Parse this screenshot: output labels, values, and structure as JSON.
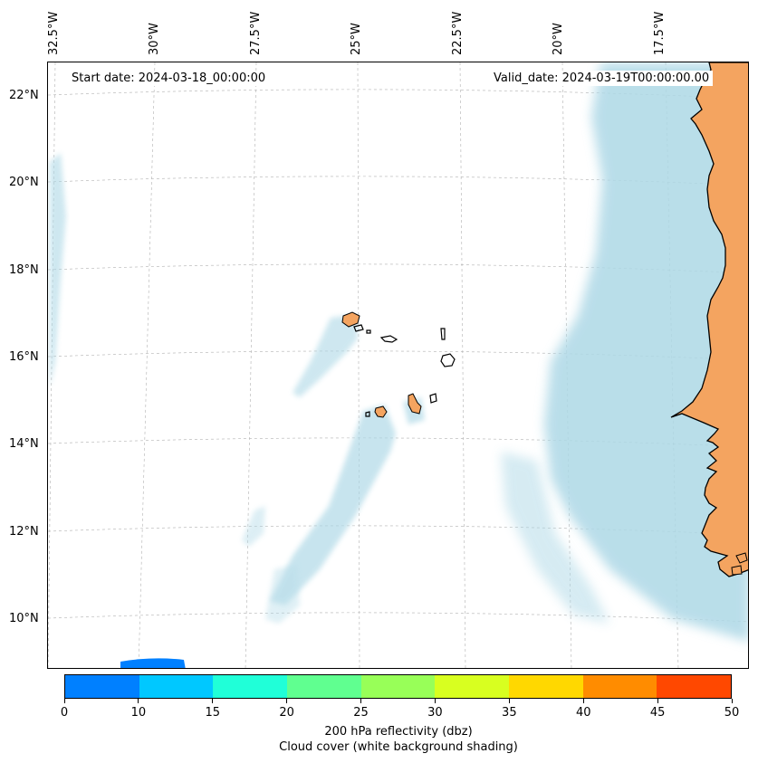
{
  "map": {
    "start_date": "Start date: 2024-03-18_00:00:00",
    "valid_date": "Valid_date: 2024-03-19T00:00:00.00",
    "lon_labels": [
      "32.5°W",
      "30°W",
      "27.5°W",
      "25°W",
      "22.5°W",
      "20°W",
      "17.5°W"
    ],
    "lat_labels": [
      "22°N",
      "20°N",
      "18°N",
      "16°N",
      "14°N",
      "12°N",
      "10°N"
    ],
    "colors": {
      "land": "#f4a460",
      "cloud": "#add8e6",
      "coastline": "#000000",
      "gridline": "#b0b0b0"
    }
  },
  "colorbar": {
    "ticks": [
      "0",
      "10",
      "15",
      "20",
      "25",
      "30",
      "35",
      "40",
      "45",
      "50"
    ],
    "colors": [
      "#0080ff",
      "#00c8ff",
      "#20ffd8",
      "#60ff90",
      "#98ff58",
      "#d8ff20",
      "#ffd800",
      "#ff8c00",
      "#ff4800"
    ],
    "label": "200 hPa reflectivity (dbz)",
    "sublabel": "Cloud cover (white background shading)"
  }
}
